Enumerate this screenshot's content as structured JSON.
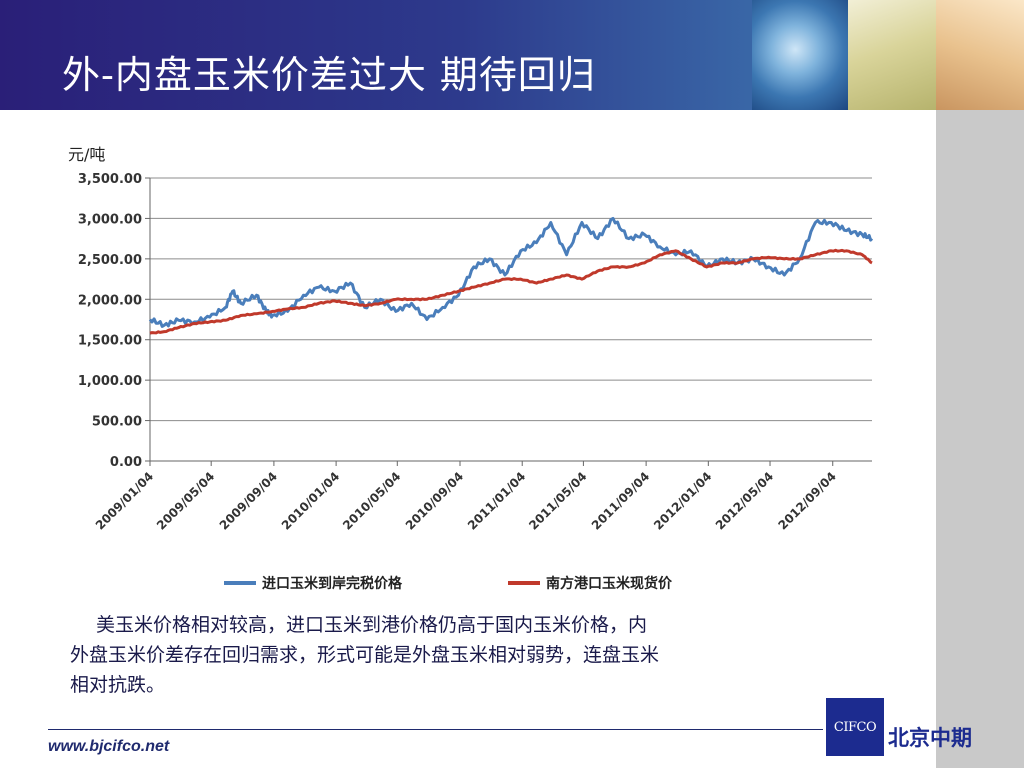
{
  "header": {
    "title": "外-内盘玉米价差过大  期待回归"
  },
  "chart_data": {
    "type": "line",
    "unit_label": "元/吨",
    "ylim": [
      0,
      3500
    ],
    "yticks": [
      "3,500.00",
      "3,000.00",
      "2,500.00",
      "2,000.00",
      "1,500.00",
      "1,000.00",
      "500.00",
      "0.00"
    ],
    "ytick_values": [
      3500,
      3000,
      2500,
      2000,
      1500,
      1000,
      500,
      0
    ],
    "xticks": [
      "2009/01/04",
      "2009/05/04",
      "2009/09/04",
      "2010/01/04",
      "2010/05/04",
      "2010/09/04",
      "2011/01/04",
      "2011/05/04",
      "2011/09/04",
      "2012/01/04",
      "2012/05/04",
      "2012/09/04"
    ],
    "xlim": [
      "2009/01/04",
      "2012/11/20"
    ],
    "grid": true,
    "legend_position": "bottom",
    "colors": {
      "series1": "#4a7ebb",
      "series2": "#c0392b"
    },
    "series": [
      {
        "name": "进口玉米到岸完税价格",
        "x": [
          "2009/01/04",
          "2009/02/01",
          "2009/03/01",
          "2009/04/01",
          "2009/05/01",
          "2009/06/01",
          "2009/06/15",
          "2009/07/01",
          "2009/08/01",
          "2009/08/20",
          "2009/09/01",
          "2009/10/01",
          "2009/11/01",
          "2009/12/01",
          "2010/01/01",
          "2010/02/01",
          "2010/03/01",
          "2010/04/01",
          "2010/05/01",
          "2010/06/01",
          "2010/07/01",
          "2010/08/01",
          "2010/09/01",
          "2010/10/01",
          "2010/11/01",
          "2010/12/01",
          "2011/01/01",
          "2011/02/01",
          "2011/03/01",
          "2011/04/01",
          "2011/05/01",
          "2011/06/01",
          "2011/07/01",
          "2011/08/01",
          "2011/09/01",
          "2011/10/01",
          "2011/11/01",
          "2011/12/01",
          "2012/01/01",
          "2012/02/01",
          "2012/03/01",
          "2012/04/01",
          "2012/05/01",
          "2012/06/01",
          "2012/07/01",
          "2012/08/01",
          "2012/09/01",
          "2012/10/01",
          "2012/11/01",
          "2012/11/20"
        ],
        "values": [
          1750,
          1680,
          1740,
          1720,
          1780,
          1900,
          2100,
          1950,
          2050,
          1850,
          1800,
          1850,
          2050,
          2150,
          2100,
          2200,
          1900,
          2000,
          1850,
          1950,
          1750,
          1900,
          2050,
          2400,
          2500,
          2300,
          2600,
          2700,
          2950,
          2550,
          2950,
          2750,
          3000,
          2750,
          2800,
          2650,
          2550,
          2600,
          2400,
          2500,
          2450,
          2500,
          2400,
          2300,
          2500,
          2950,
          2950,
          2850,
          2800,
          2750
        ]
      },
      {
        "name": "南方港口玉米现货价",
        "x": [
          "2009/01/04",
          "2009/02/01",
          "2009/03/01",
          "2009/04/01",
          "2009/05/01",
          "2009/06/01",
          "2009/07/01",
          "2009/08/01",
          "2009/09/01",
          "2009/10/01",
          "2009/11/01",
          "2009/12/01",
          "2010/01/01",
          "2010/02/01",
          "2010/03/01",
          "2010/04/01",
          "2010/05/01",
          "2010/06/01",
          "2010/07/01",
          "2010/08/01",
          "2010/09/01",
          "2010/10/01",
          "2010/11/01",
          "2010/12/01",
          "2011/01/01",
          "2011/02/01",
          "2011/03/01",
          "2011/04/01",
          "2011/05/01",
          "2011/06/01",
          "2011/07/01",
          "2011/08/01",
          "2011/09/01",
          "2011/10/01",
          "2011/11/01",
          "2011/12/01",
          "2012/01/01",
          "2012/02/01",
          "2012/03/01",
          "2012/04/01",
          "2012/05/01",
          "2012/06/01",
          "2012/07/01",
          "2012/08/01",
          "2012/09/01",
          "2012/10/01",
          "2012/11/01",
          "2012/11/20"
        ],
        "values": [
          1580,
          1600,
          1650,
          1700,
          1720,
          1740,
          1800,
          1820,
          1850,
          1880,
          1900,
          1950,
          1980,
          1950,
          1920,
          1950,
          2000,
          2000,
          2000,
          2050,
          2100,
          2150,
          2200,
          2250,
          2250,
          2200,
          2250,
          2300,
          2250,
          2350,
          2400,
          2400,
          2450,
          2550,
          2600,
          2500,
          2400,
          2450,
          2450,
          2500,
          2520,
          2500,
          2500,
          2550,
          2600,
          2600,
          2550,
          2450
        ]
      }
    ]
  },
  "body_text": {
    "line1": "美玉米价格相对较高，进口玉米到港价格仍高于国内玉米价格，内",
    "line2": "外盘玉米价差存在回归需求，形式可能是外盘玉米相对弱势，连盘玉米",
    "line3": "相对抗跌。"
  },
  "footer": {
    "url": "www.bjcifco.net",
    "logo_mark": "CIFCO",
    "logo_text": "北京中期"
  }
}
